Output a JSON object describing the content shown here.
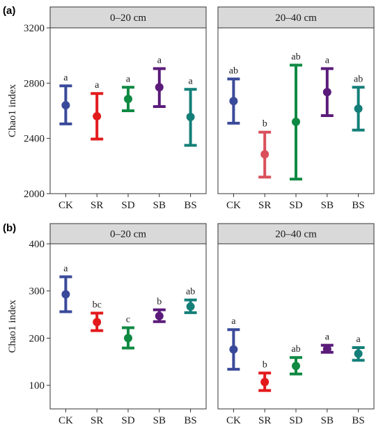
{
  "chart_data": [
    {
      "type": "errorbar",
      "panel_label": "(a)",
      "ylabel": "Chao1 index",
      "ylim": [
        2000,
        3200
      ],
      "yticks": [
        2000,
        2400,
        2800,
        3200
      ],
      "categories": [
        "CK",
        "SR",
        "SD",
        "SB",
        "BS"
      ],
      "facets": [
        {
          "title": "0–20 cm",
          "mean": [
            2640,
            2560,
            2685,
            2770,
            2555
          ],
          "lower": [
            2505,
            2395,
            2600,
            2630,
            2350
          ],
          "upper": [
            2780,
            2725,
            2770,
            2905,
            2755
          ],
          "letters": [
            "a",
            "a",
            "a",
            "a",
            "a"
          ]
        },
        {
          "title": "20–40 cm",
          "mean": [
            2670,
            2285,
            2520,
            2735,
            2615
          ],
          "lower": [
            2510,
            2120,
            2105,
            2565,
            2460
          ],
          "upper": [
            2830,
            2445,
            2930,
            2905,
            2770
          ],
          "letters": [
            "ab",
            "b",
            "ab",
            "a",
            "ab"
          ]
        }
      ]
    },
    {
      "type": "errorbar",
      "panel_label": "(b)",
      "ylabel": "Chao1 index",
      "ylim": [
        50,
        400
      ],
      "yticks": [
        100,
        200,
        300,
        400
      ],
      "categories": [
        "CK",
        "SR",
        "SD",
        "SB",
        "BS"
      ],
      "facets": [
        {
          "title": "0–20 cm",
          "mean": [
            293,
            234,
            200,
            247,
            267
          ],
          "lower": [
            256,
            216,
            179,
            235,
            254
          ],
          "upper": [
            330,
            253,
            222,
            260,
            281
          ],
          "letters": [
            "a",
            "bc",
            "c",
            "b",
            "ab"
          ]
        },
        {
          "title": "20–40 cm",
          "mean": [
            176,
            107,
            141,
            177,
            167
          ],
          "lower": [
            134,
            89,
            124,
            170,
            153
          ],
          "upper": [
            218,
            126,
            159,
            185,
            180
          ],
          "letters": [
            "a",
            "b",
            "ab",
            "a",
            "a"
          ]
        }
      ]
    }
  ],
  "colors": {
    "CK": "#3A4A9A",
    "SR": "#E31A1C",
    "SD": "#0F8A43",
    "SB": "#5B1B7A",
    "BS": "#147F79",
    "SR_lower_right": "#D9505B",
    "strip_bg": "#D9D9D9",
    "border": "#333333"
  }
}
